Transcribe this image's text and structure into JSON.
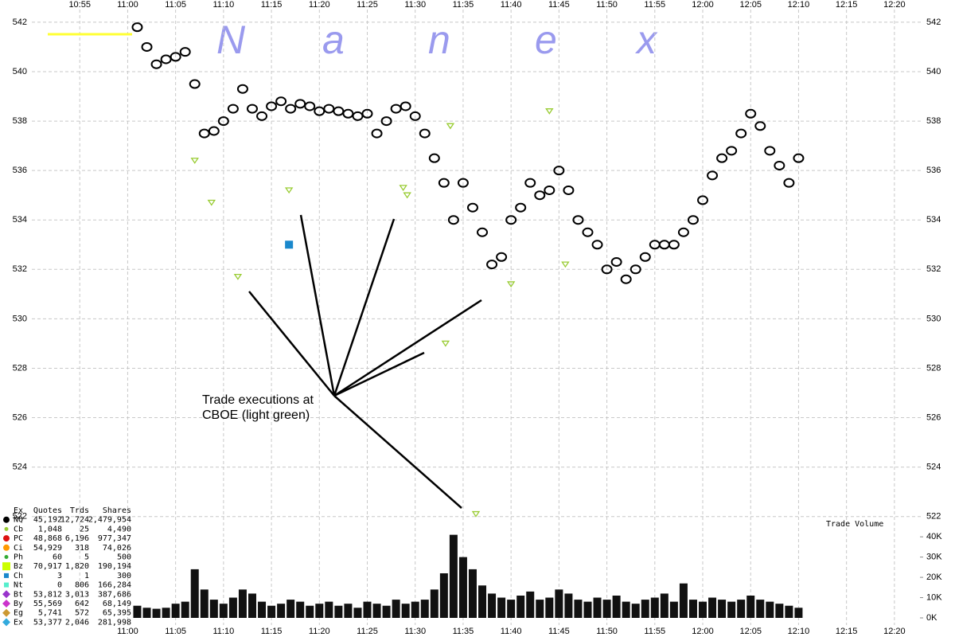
{
  "watermark": [
    "N",
    "a",
    "n",
    "e",
    "x"
  ],
  "annotation": [
    "Trade executions at",
    "CBOE (light green)"
  ],
  "volume_label": "Trade Volume",
  "exchange_table": {
    "columns": [
      "Ex",
      "Quotes",
      "Trds",
      "Shares"
    ],
    "rows": [
      {
        "ex": "NQ",
        "quotes": "45,192",
        "trds": "12,724",
        "shares": "2,479,954",
        "color": "#000000",
        "shape": "circle"
      },
      {
        "ex": "Cb",
        "quotes": "1,048",
        "trds": "25",
        "shares": "4,490",
        "color": "#99cc33",
        "shape": "dot"
      },
      {
        "ex": "PC",
        "quotes": "48,868",
        "trds": "6,196",
        "shares": "977,347",
        "color": "#dd1111",
        "shape": "circle"
      },
      {
        "ex": "Ci",
        "quotes": "54,929",
        "trds": "318",
        "shares": "74,026",
        "color": "#ff9900",
        "shape": "circle"
      },
      {
        "ex": "Ph",
        "quotes": "60",
        "trds": "5",
        "shares": "500",
        "color": "#33aa33",
        "shape": "dot"
      },
      {
        "ex": "Bz",
        "quotes": "70,917",
        "trds": "1,820",
        "shares": "190,194",
        "color": "#ccff00",
        "shape": "square"
      },
      {
        "ex": "Ch",
        "quotes": "3",
        "trds": "1",
        "shares": "300",
        "color": "#1a88cc",
        "shape": "small-square"
      },
      {
        "ex": "Nt",
        "quotes": "0",
        "trds": "806",
        "shares": "166,284",
        "color": "#55eecc",
        "shape": "small-square"
      },
      {
        "ex": "Bt",
        "quotes": "53,812",
        "trds": "3,013",
        "shares": "387,686",
        "color": "#9933cc",
        "shape": "diamond"
      },
      {
        "ex": "By",
        "quotes": "55,569",
        "trds": "642",
        "shares": "68,149",
        "color": "#cc33cc",
        "shape": "diamond"
      },
      {
        "ex": "Eg",
        "quotes": "5,741",
        "trds": "572",
        "shares": "65,395",
        "color": "#cc9933",
        "shape": "diamond"
      },
      {
        "ex": "Ex",
        "quotes": "53,377",
        "trds": "2,046",
        "shares": "281,998",
        "color": "#33aadd",
        "shape": "diamond"
      }
    ]
  },
  "chart_data": [
    {
      "type": "scatter",
      "xlim": [
        "10:50",
        "12:23"
      ],
      "xticks": [
        "10:55",
        "11:00",
        "11:05",
        "11:10",
        "11:15",
        "11:20",
        "11:25",
        "11:30",
        "11:35",
        "11:40",
        "11:45",
        "11:50",
        "11:55",
        "12:00",
        "12:05",
        "12:10",
        "12:15",
        "12:20"
      ],
      "ylim": [
        521.7,
        542.9
      ],
      "yticks": [
        522,
        524,
        526,
        528,
        530,
        532,
        534,
        536,
        538,
        540,
        542
      ],
      "grid": true,
      "series": [
        {
          "color": "#000000",
          "marker": "open-circle",
          "x": [
            "11:01",
            "11:02",
            "11:03",
            "11:04",
            "11:05",
            "11:06",
            "11:07",
            "11:08",
            "11:09",
            "11:10",
            "11:11",
            "11:12",
            "11:13",
            "11:14",
            "11:15",
            "11:16",
            "11:17",
            "11:18",
            "11:19",
            "11:20",
            "11:21",
            "11:22",
            "11:23",
            "11:24",
            "11:25",
            "11:26",
            "11:27",
            "11:28",
            "11:29",
            "11:30",
            "11:31",
            "11:32",
            "11:33",
            "11:34",
            "11:35",
            "11:36",
            "11:37",
            "11:38",
            "11:39",
            "11:40",
            "11:41",
            "11:42",
            "11:43",
            "11:44",
            "11:45",
            "11:46",
            "11:47",
            "11:48",
            "11:49",
            "11:50",
            "11:51",
            "11:52",
            "11:53",
            "11:54",
            "11:55",
            "11:56",
            "11:57",
            "11:58",
            "11:59",
            "12:00",
            "12:01",
            "12:02",
            "12:03",
            "12:04",
            "12:05",
            "12:06",
            "12:07",
            "12:08",
            "12:09",
            "12:10"
          ],
          "values": [
            541.8,
            541,
            540.3,
            540.5,
            540.6,
            540.8,
            539.5,
            537.5,
            537.6,
            538,
            538.5,
            539.3,
            538.5,
            538.2,
            538.6,
            538.8,
            538.5,
            538.7,
            538.6,
            538.4,
            538.5,
            538.4,
            538.3,
            538.2,
            538.3,
            537.5,
            538,
            538.5,
            538.6,
            538.2,
            537.5,
            536.5,
            535.5,
            534,
            535.5,
            534.5,
            533.5,
            532.2,
            532.5,
            534,
            534.5,
            535.5,
            535,
            535.2,
            536,
            535.2,
            534,
            533.5,
            533,
            532,
            532.3,
            531.6,
            532,
            532.5,
            533,
            533,
            533,
            533.5,
            534,
            534.8,
            535.8,
            536.5,
            536.8,
            537.5,
            538.3,
            537.8,
            536.8,
            536.2,
            535.5,
            536.5
          ]
        },
        {
          "color": "#99cc33",
          "marker": "triangle",
          "x": [
            "11:07:00",
            "11:08:45",
            "11:11:30",
            "11:16:50",
            "11:28:45",
            "11:29:10",
            "11:33:40",
            "11:33:10",
            "11:36:20",
            "11:40:00",
            "11:44:00",
            "11:45:40"
          ],
          "values": [
            536.4,
            534.7,
            531.7,
            535.2,
            535.3,
            535,
            537.8,
            529,
            522.1,
            531.4,
            538.4,
            532.2
          ]
        },
        {
          "color": "#1a88cc",
          "marker": "square",
          "x": [
            "11:16:50"
          ],
          "values": [
            533
          ]
        }
      ]
    },
    {
      "type": "bar",
      "xlim": [
        "10:50",
        "12:23"
      ],
      "xticks": [
        "11:00",
        "11:05",
        "11:10",
        "11:15",
        "11:20",
        "11:25",
        "11:30",
        "11:35",
        "11:40",
        "11:45",
        "11:50",
        "11:55",
        "12:00",
        "12:05",
        "12:10",
        "12:15",
        "12:20"
      ],
      "ylim": [
        0,
        44000
      ],
      "yticks": [
        {
          "value": 0,
          "label": "0K"
        },
        {
          "value": 10000,
          "label": "10K"
        },
        {
          "value": 20000,
          "label": "20K"
        },
        {
          "value": 30000,
          "label": "30K"
        },
        {
          "value": 40000,
          "label": "40K"
        }
      ],
      "color": "#111111",
      "x": [
        "11:01",
        "11:02",
        "11:03",
        "11:04",
        "11:05",
        "11:06",
        "11:07",
        "11:08",
        "11:09",
        "11:10",
        "11:11",
        "11:12",
        "11:13",
        "11:14",
        "11:15",
        "11:16",
        "11:17",
        "11:18",
        "11:19",
        "11:20",
        "11:21",
        "11:22",
        "11:23",
        "11:24",
        "11:25",
        "11:26",
        "11:27",
        "11:28",
        "11:29",
        "11:30",
        "11:31",
        "11:32",
        "11:33",
        "11:34",
        "11:35",
        "11:36",
        "11:37",
        "11:38",
        "11:39",
        "11:40",
        "11:41",
        "11:42",
        "11:43",
        "11:44",
        "11:45",
        "11:46",
        "11:47",
        "11:48",
        "11:49",
        "11:50",
        "11:51",
        "11:52",
        "11:53",
        "11:54",
        "11:55",
        "11:56",
        "11:57",
        "11:58",
        "11:59",
        "12:00",
        "12:01",
        "12:02",
        "12:03",
        "12:04",
        "12:05",
        "12:06",
        "12:07",
        "12:08",
        "12:09",
        "12:10"
      ],
      "values": [
        6000,
        5000,
        4500,
        5000,
        7000,
        8000,
        24000,
        14000,
        9000,
        7000,
        10000,
        14000,
        12000,
        8000,
        6000,
        7000,
        9000,
        8000,
        6000,
        7000,
        8000,
        6000,
        7000,
        5000,
        8000,
        7000,
        6000,
        9000,
        7000,
        8000,
        9000,
        14000,
        22000,
        41000,
        30000,
        24000,
        16000,
        12000,
        10000,
        9000,
        11000,
        13000,
        9000,
        10000,
        14000,
        12000,
        9000,
        8000,
        10000,
        9000,
        11000,
        8000,
        7000,
        9000,
        10000,
        12000,
        8000,
        17000,
        9000,
        8000,
        10000,
        9000,
        8000,
        9000,
        11000,
        9000,
        8000,
        7000,
        6000,
        5000
      ]
    }
  ]
}
